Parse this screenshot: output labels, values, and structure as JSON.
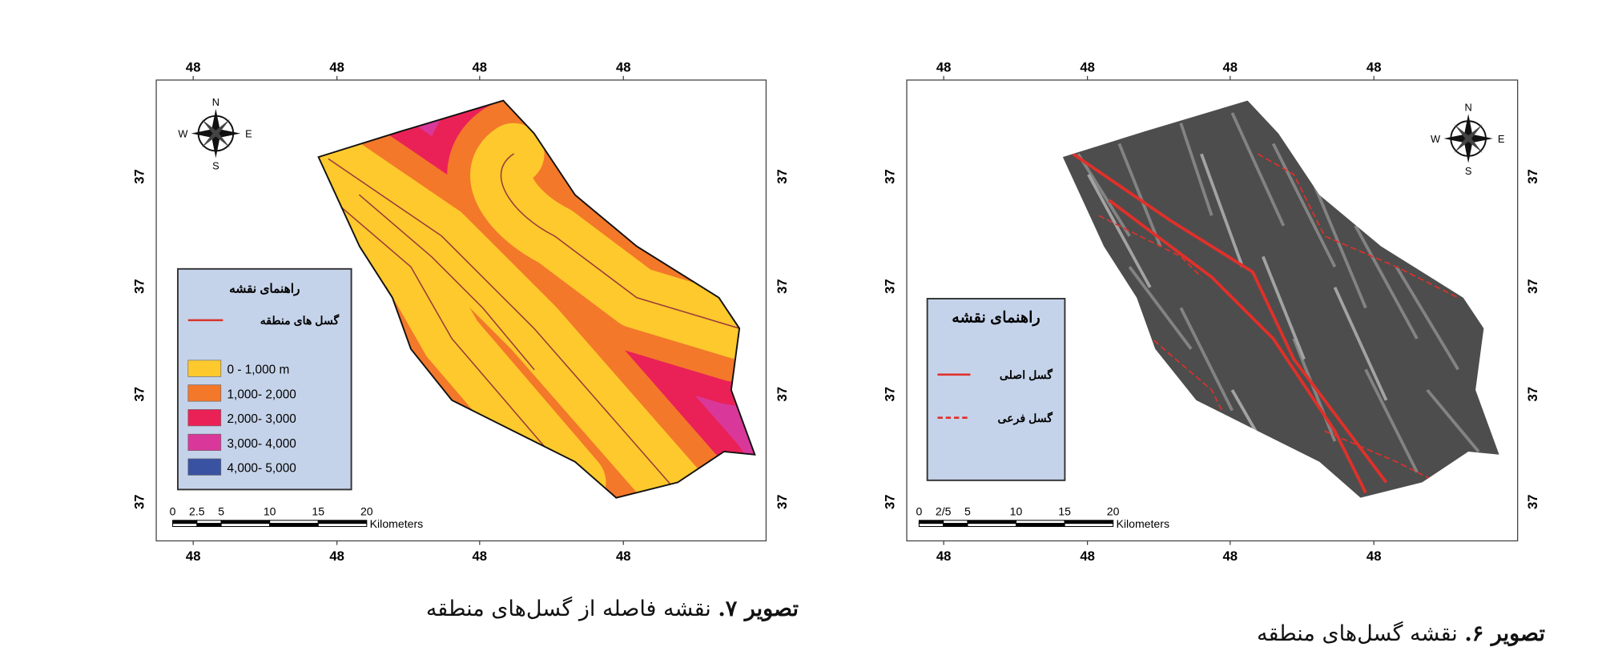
{
  "figures": [
    {
      "caption_label": "تصویر ۷.",
      "caption": "نقشه فاصله از گسل‌های منطقه",
      "top_ticks": [
        "48",
        "48",
        "48",
        "48"
      ],
      "bottom_ticks": [
        "48",
        "48",
        "48",
        "48"
      ],
      "left_ticks": [
        "37",
        "37",
        "37",
        "37"
      ],
      "right_ticks": [
        "37",
        "37",
        "37",
        "37"
      ],
      "compass": {
        "n": "N",
        "e": "E",
        "s": "S",
        "w": "W"
      },
      "legend": {
        "title": "راهنمای نقشه",
        "items": [
          {
            "label": "گسل های منطقه",
            "color": "#d9342b",
            "style": "line"
          },
          {
            "label": "0 - 1,000 m",
            "color": "#fdc92d",
            "style": "fill"
          },
          {
            "label": "1,000- 2,000",
            "color": "#f3782a",
            "style": "fill"
          },
          {
            "label": "2,000- 3,000",
            "color": "#ea2157",
            "style": "fill"
          },
          {
            "label": "3,000- 4,000",
            "color": "#d9389a",
            "style": "fill"
          },
          {
            "label": "4,000- 5,000",
            "color": "#3a52a2",
            "style": "fill"
          }
        ]
      },
      "scale": {
        "labels": [
          "0",
          "2.5",
          "5",
          "10",
          "15",
          "20"
        ],
        "unit": "Kilometers"
      }
    },
    {
      "caption_label": "تصویر ۶.",
      "caption": "نقشه گسل‌های منطقه",
      "top_ticks": [
        "48",
        "48",
        "48",
        "48"
      ],
      "bottom_ticks": [
        "48",
        "48",
        "48",
        "48"
      ],
      "left_ticks": [
        "37",
        "37",
        "37",
        "37"
      ],
      "right_ticks": [
        "37",
        "37",
        "37",
        "37"
      ],
      "compass": {
        "n": "N",
        "e": "E",
        "s": "S",
        "w": "W"
      },
      "legend": {
        "title": "راهنمای نقشه",
        "items": [
          {
            "label": "گسل اصلی",
            "color": "#e0302a",
            "style": "line"
          },
          {
            "label": "گسل فرعی",
            "color": "#e0302a",
            "style": "dashed"
          }
        ]
      },
      "scale": {
        "labels": [
          "0",
          "2/5",
          "5",
          "10",
          "15",
          "20"
        ],
        "unit": "Kilometers"
      }
    }
  ]
}
